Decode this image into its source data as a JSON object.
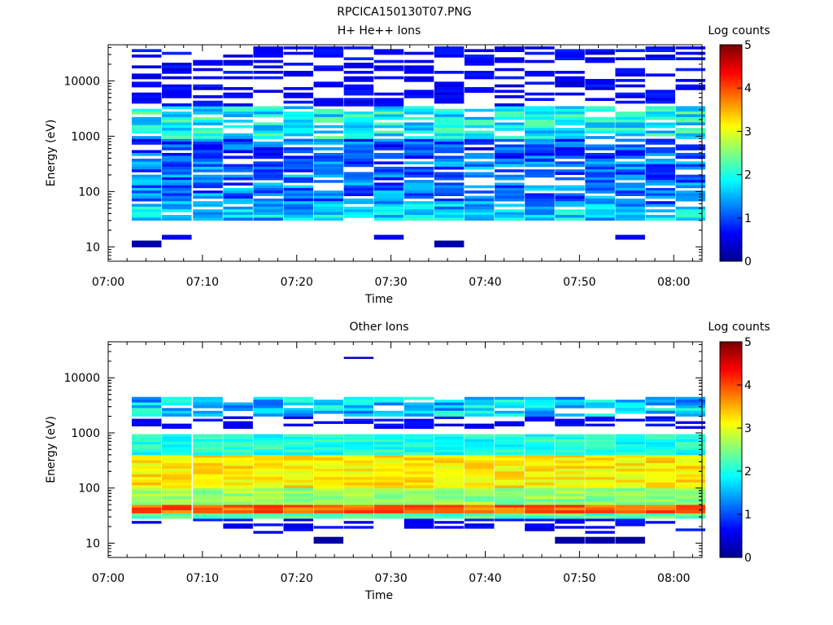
{
  "figure_title": "RPCICA150130T07.PNG",
  "colors": {
    "colormap": [
      "#00008f",
      "#0000ff",
      "#0080ff",
      "#00ffff",
      "#80ff80",
      "#ffff00",
      "#ff8000",
      "#ff0000",
      "#800000"
    ]
  },
  "chart_data": [
    {
      "type": "heatmap",
      "title": "H+ He++ Ions",
      "xlabel": "Time",
      "ylabel": "Energy (eV)",
      "x_ticks": [
        "07:00",
        "07:10",
        "07:20",
        "07:30",
        "07:40",
        "07:50",
        "08:00"
      ],
      "xlim_minutes": [
        0,
        63
      ],
      "y_scale": "log",
      "y_ticks": [
        10,
        100,
        1000,
        10000
      ],
      "y_tick_labels": [
        "10",
        "100",
        "1000",
        "10000"
      ],
      "ylim": [
        5.5,
        45000
      ],
      "colorbar": {
        "label": "Log counts",
        "range": [
          0,
          5
        ],
        "ticks": [
          "0",
          "1",
          "2",
          "3",
          "4",
          "5"
        ]
      },
      "time_bins_minutes": [
        2.5,
        5.7,
        9.0,
        12.2,
        15.4,
        18.6,
        21.8,
        25.0,
        28.2,
        31.4,
        34.6,
        37.8,
        41.0,
        44.2,
        47.4,
        50.6,
        53.8,
        57.0,
        60.2
      ],
      "bands": [
        {
          "emin": 9.8,
          "emax": 13.0,
          "level": 0.15,
          "cols": [
            0,
            10
          ]
        },
        {
          "emin": 13.5,
          "emax": 16.5,
          "level": 0.5,
          "cols": [
            1,
            8,
            16
          ]
        },
        {
          "emin": 30,
          "emax": 60,
          "level": 1.6,
          "pattern": "mixed"
        },
        {
          "emin": 60,
          "emax": 350,
          "level": 1.2,
          "pattern": "mixed"
        },
        {
          "emin": 350,
          "emax": 900,
          "level": 1.0,
          "pattern": "mixed"
        },
        {
          "emin": 900,
          "emax": 3500,
          "level": 1.9,
          "pattern": "mixed"
        },
        {
          "emin": 3500,
          "emax": 42000,
          "level": 0.4,
          "pattern": "sparse"
        }
      ]
    },
    {
      "type": "heatmap",
      "title": "Other Ions",
      "xlabel": "Time",
      "ylabel": "Energy (eV)",
      "x_ticks": [
        "07:00",
        "07:10",
        "07:20",
        "07:30",
        "07:40",
        "07:50",
        "08:00"
      ],
      "xlim_minutes": [
        0,
        63
      ],
      "y_scale": "log",
      "y_ticks": [
        10,
        100,
        1000,
        10000
      ],
      "y_tick_labels": [
        "10",
        "100",
        "1000",
        "10000"
      ],
      "ylim": [
        5.5,
        45000
      ],
      "colorbar": {
        "label": "Log counts",
        "range": [
          0,
          5
        ],
        "ticks": [
          "0",
          "1",
          "2",
          "3",
          "4",
          "5"
        ]
      },
      "time_bins_minutes": [
        2.5,
        5.7,
        9.0,
        12.2,
        15.4,
        18.6,
        21.8,
        25.0,
        28.2,
        31.4,
        34.6,
        37.8,
        41.0,
        44.2,
        47.4,
        50.6,
        53.8,
        57.0,
        60.2
      ],
      "bands": [
        {
          "emin": 9.8,
          "emax": 13.0,
          "level": 0.1,
          "cols": [
            6,
            14,
            15,
            16
          ]
        },
        {
          "emin": 15,
          "emax": 28,
          "level": 0.4,
          "pattern": "sparse"
        },
        {
          "emin": 28,
          "emax": 35,
          "level": 2.3,
          "pattern": "solid"
        },
        {
          "emin": 35,
          "emax": 50,
          "level": 3.9,
          "pattern": "solid"
        },
        {
          "emin": 50,
          "emax": 100,
          "level": 2.6,
          "pattern": "solid"
        },
        {
          "emin": 100,
          "emax": 400,
          "level": 3.2,
          "pattern": "solid"
        },
        {
          "emin": 400,
          "emax": 950,
          "level": 2.0,
          "pattern": "solid"
        },
        {
          "emin": 1200,
          "emax": 2000,
          "level": 0.4,
          "pattern": "sparse"
        },
        {
          "emin": 2000,
          "emax": 4500,
          "level": 1.6,
          "pattern": "mixed"
        },
        {
          "emin": 22000,
          "emax": 24000,
          "level": 0.3,
          "cols": [
            7
          ]
        }
      ]
    }
  ]
}
